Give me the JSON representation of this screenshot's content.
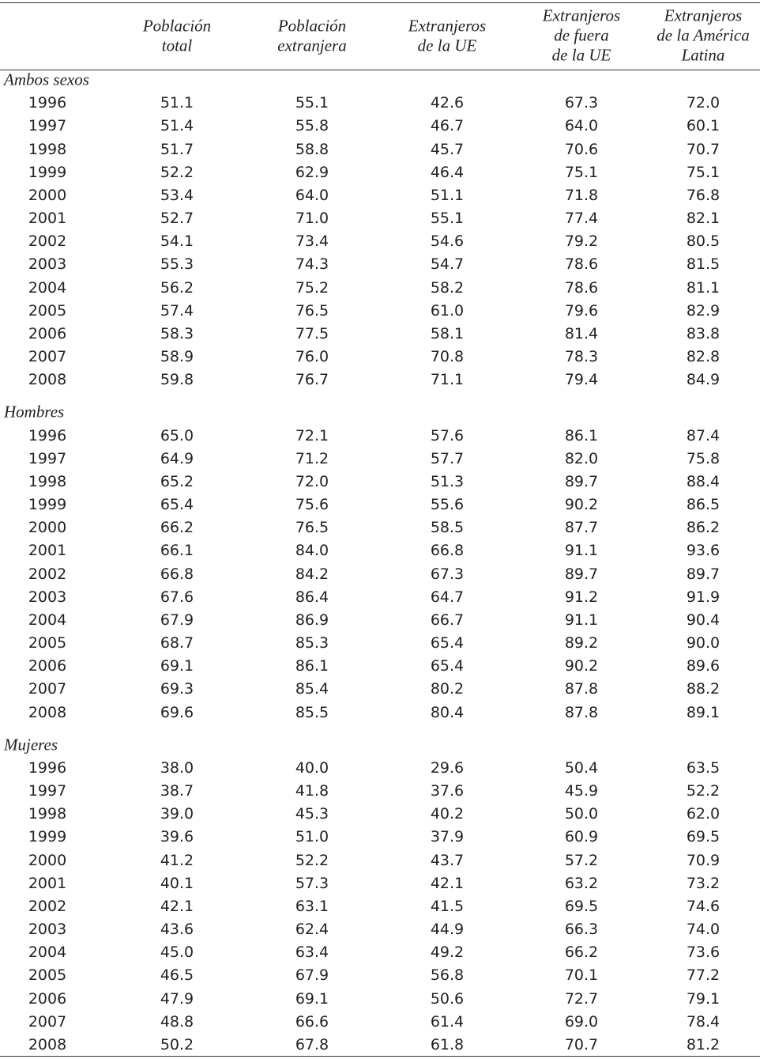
{
  "table": {
    "columns": [
      [
        "Población",
        "total"
      ],
      [
        "Población",
        "extranjera"
      ],
      [
        "Extranjeros",
        "de la UE"
      ],
      [
        "Extranjeros",
        "de fuera",
        "de la UE"
      ],
      [
        "Extranjeros",
        "de la América",
        "Latina"
      ]
    ],
    "sections": [
      {
        "label": "Ambos sexos",
        "rows": [
          [
            "1996",
            "51.1",
            "55.1",
            "42.6",
            "67.3",
            "72.0"
          ],
          [
            "1997",
            "51.4",
            "55.8",
            "46.7",
            "64.0",
            "60.1"
          ],
          [
            "1998",
            "51.7",
            "58.8",
            "45.7",
            "70.6",
            "70.7"
          ],
          [
            "1999",
            "52.2",
            "62.9",
            "46.4",
            "75.1",
            "75.1"
          ],
          [
            "2000",
            "53.4",
            "64.0",
            "51.1",
            "71.8",
            "76.8"
          ],
          [
            "2001",
            "52.7",
            "71.0",
            "55.1",
            "77.4",
            "82.1"
          ],
          [
            "2002",
            "54.1",
            "73.4",
            "54.6",
            "79.2",
            "80.5"
          ],
          [
            "2003",
            "55.3",
            "74.3",
            "54.7",
            "78.6",
            "81.5"
          ],
          [
            "2004",
            "56.2",
            "75.2",
            "58.2",
            "78.6",
            "81.1"
          ],
          [
            "2005",
            "57.4",
            "76.5",
            "61.0",
            "79.6",
            "82.9"
          ],
          [
            "2006",
            "58.3",
            "77.5",
            "58.1",
            "81.4",
            "83.8"
          ],
          [
            "2007",
            "58.9",
            "76.0",
            "70.8",
            "78.3",
            "82.8"
          ],
          [
            "2008",
            "59.8",
            "76.7",
            "71.1",
            "79.4",
            "84.9"
          ]
        ]
      },
      {
        "label": "Hombres",
        "rows": [
          [
            "1996",
            "65.0",
            "72.1",
            "57.6",
            "86.1",
            "87.4"
          ],
          [
            "1997",
            "64.9",
            "71.2",
            "57.7",
            "82.0",
            "75.8"
          ],
          [
            "1998",
            "65.2",
            "72.0",
            "51.3",
            "89.7",
            "88.4"
          ],
          [
            "1999",
            "65.4",
            "75.6",
            "55.6",
            "90.2",
            "86.5"
          ],
          [
            "2000",
            "66.2",
            "76.5",
            "58.5",
            "87.7",
            "86.2"
          ],
          [
            "2001",
            "66.1",
            "84.0",
            "66.8",
            "91.1",
            "93.6"
          ],
          [
            "2002",
            "66.8",
            "84.2",
            "67.3",
            "89.7",
            "89.7"
          ],
          [
            "2003",
            "67.6",
            "86.4",
            "64.7",
            "91.2",
            "91.9"
          ],
          [
            "2004",
            "67.9",
            "86.9",
            "66.7",
            "91.1",
            "90.4"
          ],
          [
            "2005",
            "68.7",
            "85.3",
            "65.4",
            "89.2",
            "90.0"
          ],
          [
            "2006",
            "69.1",
            "86.1",
            "65.4",
            "90.2",
            "89.6"
          ],
          [
            "2007",
            "69.3",
            "85.4",
            "80.2",
            "87.8",
            "88.2"
          ],
          [
            "2008",
            "69.6",
            "85.5",
            "80.4",
            "87.8",
            "89.1"
          ]
        ]
      },
      {
        "label": "Mujeres",
        "rows": [
          [
            "1996",
            "38.0",
            "40.0",
            "29.6",
            "50.4",
            "63.5"
          ],
          [
            "1997",
            "38.7",
            "41.8",
            "37.6",
            "45.9",
            "52.2"
          ],
          [
            "1998",
            "39.0",
            "45.3",
            "40.2",
            "50.0",
            "62.0"
          ],
          [
            "1999",
            "39.6",
            "51.0",
            "37.9",
            "60.9",
            "69.5"
          ],
          [
            "2000",
            "41.2",
            "52.2",
            "43.7",
            "57.2",
            "70.9"
          ],
          [
            "2001",
            "40.1",
            "57.3",
            "42.1",
            "63.2",
            "73.2"
          ],
          [
            "2002",
            "42.1",
            "63.1",
            "41.5",
            "69.5",
            "74.6"
          ],
          [
            "2003",
            "43.6",
            "62.4",
            "44.9",
            "66.3",
            "74.0"
          ],
          [
            "2004",
            "45.0",
            "63.4",
            "49.2",
            "66.2",
            "73.6"
          ],
          [
            "2005",
            "46.5",
            "67.9",
            "56.8",
            "70.1",
            "77.2"
          ],
          [
            "2006",
            "47.9",
            "69.1",
            "50.6",
            "72.7",
            "79.1"
          ],
          [
            "2007",
            "48.8",
            "66.6",
            "61.4",
            "69.0",
            "78.4"
          ],
          [
            "2008",
            "50.2",
            "67.8",
            "61.8",
            "70.7",
            "81.2"
          ]
        ]
      }
    ]
  }
}
